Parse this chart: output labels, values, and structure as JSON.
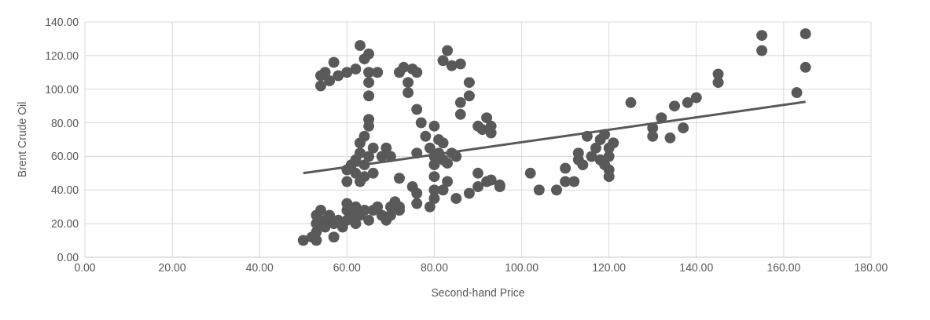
{
  "chart_data": {
    "type": "scatter",
    "xlabel": "Second-hand Price",
    "ylabel": "Brent Crude Oil",
    "xlim": [
      0,
      180
    ],
    "xticks": [
      {
        "value": 0,
        "label": "0.00"
      },
      {
        "value": 20,
        "label": "20.00"
      },
      {
        "value": 40,
        "label": "40.00"
      },
      {
        "value": 60,
        "label": "60.00"
      },
      {
        "value": 80,
        "label": "80.00"
      },
      {
        "value": 100,
        "label": "100.00"
      },
      {
        "value": 120,
        "label": "120.00"
      },
      {
        "value": 140,
        "label": "140.00"
      },
      {
        "value": 160,
        "label": "160.00"
      },
      {
        "value": 180,
        "label": "180.00"
      }
    ],
    "ylim": [
      0,
      140
    ],
    "yticks": [
      {
        "value": 0,
        "label": "0.00"
      },
      {
        "value": 20,
        "label": "20.00"
      },
      {
        "value": 40,
        "label": "40.00"
      },
      {
        "value": 60,
        "label": "60.00"
      },
      {
        "value": 80,
        "label": "80.00"
      },
      {
        "value": 100,
        "label": "100.00"
      },
      {
        "value": 120,
        "label": "120.00"
      },
      {
        "value": 140,
        "label": "140.00"
      }
    ],
    "grid": true,
    "marker": "circle",
    "series": [
      {
        "color": "#595959",
        "x": [
          50,
          52,
          53,
          53,
          53,
          53,
          54,
          55,
          55,
          56,
          57,
          57,
          58,
          59,
          60,
          60,
          60,
          61,
          62,
          62,
          63,
          64,
          65,
          66,
          67,
          68,
          69,
          70,
          70,
          71,
          72,
          72,
          60,
          60,
          61,
          62,
          62,
          63,
          63,
          63,
          64,
          64,
          64,
          65,
          65,
          65,
          66,
          66,
          68,
          69,
          70,
          72,
          54,
          54,
          55,
          56,
          57,
          58,
          60,
          62,
          63,
          64,
          65,
          65,
          65,
          65,
          67,
          72,
          73,
          74,
          74,
          75,
          76,
          76,
          77,
          76,
          78,
          79,
          80,
          80,
          80,
          80,
          80,
          81,
          81,
          82,
          82,
          83,
          83,
          84,
          85,
          82,
          83,
          84,
          86,
          86,
          86,
          88,
          88,
          90,
          91,
          92,
          93,
          93,
          75,
          76,
          76,
          79,
          80,
          82,
          85,
          88,
          90,
          90,
          92,
          93,
          95,
          95,
          102,
          104,
          108,
          110,
          110,
          112,
          113,
          113,
          114,
          115,
          116,
          117,
          118,
          118,
          119,
          119,
          120,
          120,
          120,
          120,
          121,
          125,
          130,
          130,
          132,
          134,
          135,
          137,
          138,
          140,
          145,
          145,
          155,
          155,
          163,
          165,
          165
        ],
        "values": [
          10,
          12,
          10,
          15,
          20,
          25,
          28,
          22,
          18,
          25,
          12,
          20,
          22,
          18,
          22,
          28,
          32,
          25,
          20,
          30,
          25,
          28,
          22,
          28,
          30,
          25,
          22,
          25,
          30,
          33,
          30,
          28,
          45,
          52,
          55,
          50,
          58,
          45,
          62,
          68,
          72,
          48,
          55,
          78,
          82,
          60,
          50,
          65,
          60,
          65,
          60,
          47,
          102,
          108,
          110,
          105,
          116,
          108,
          110,
          112,
          126,
          118,
          121,
          110,
          104,
          96,
          110,
          110,
          113,
          104,
          98,
          112,
          110,
          88,
          80,
          62,
          72,
          65,
          78,
          60,
          55,
          48,
          40,
          70,
          62,
          58,
          68,
          45,
          56,
          62,
          60,
          117,
          123,
          114,
          115,
          92,
          85,
          104,
          96,
          78,
          76,
          83,
          78,
          74,
          42,
          38,
          32,
          30,
          35,
          40,
          35,
          38,
          50,
          42,
          45,
          46,
          43,
          42,
          50,
          40,
          40,
          45,
          53,
          45,
          58,
          62,
          55,
          72,
          60,
          65,
          70,
          58,
          73,
          55,
          65,
          60,
          52,
          48,
          68,
          92,
          77,
          72,
          83,
          71,
          90,
          77,
          92,
          95,
          109,
          104,
          132,
          123,
          98,
          133,
          113
        ]
      },
      {
        "type": "line",
        "color": "#595959",
        "marker": "none",
        "x": [
          50,
          165
        ],
        "values": [
          50,
          92.5
        ]
      }
    ]
  }
}
